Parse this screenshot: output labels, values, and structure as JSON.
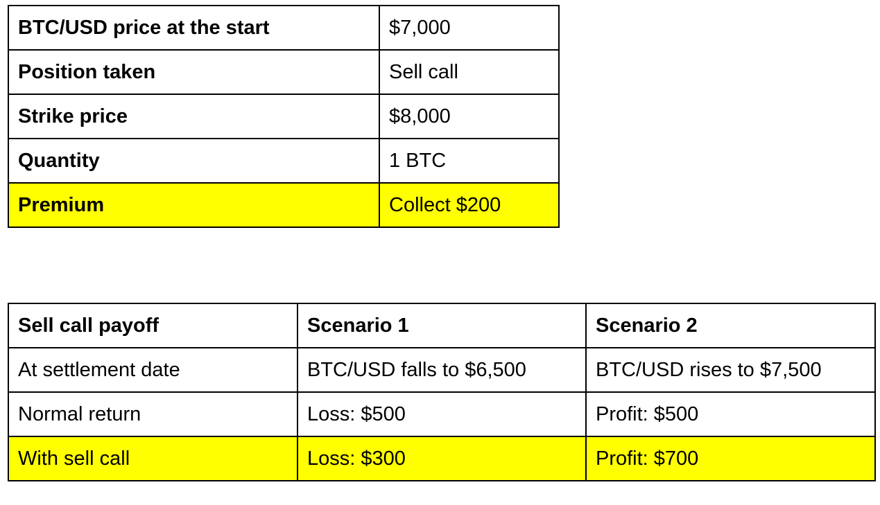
{
  "position_table": {
    "rows": [
      {
        "label": "BTC/USD price at the start",
        "value": "$7,000",
        "highlight": false
      },
      {
        "label": "Position taken",
        "value": "Sell call",
        "highlight": false
      },
      {
        "label": "Strike price",
        "value": "$8,000",
        "highlight": false
      },
      {
        "label": "Quantity",
        "value": "1 BTC",
        "highlight": false
      },
      {
        "label": "Premium",
        "value": "Collect $200",
        "highlight": true
      }
    ]
  },
  "payoff_table": {
    "headers": [
      "Sell call payoff",
      "Scenario 1",
      "Scenario 2"
    ],
    "rows": [
      {
        "cells": [
          "At settlement date",
          "BTC/USD falls to $6,500",
          "BTC/USD rises to $7,500"
        ],
        "highlight": false
      },
      {
        "cells": [
          "Normal return",
          "Loss: $500",
          "Profit: $500"
        ],
        "highlight": false
      },
      {
        "cells": [
          "With sell call",
          "Loss: $300",
          "Profit: $700"
        ],
        "highlight": true
      }
    ]
  },
  "colors": {
    "highlight": "#ffff00",
    "border": "#000000",
    "text": "#000000"
  }
}
